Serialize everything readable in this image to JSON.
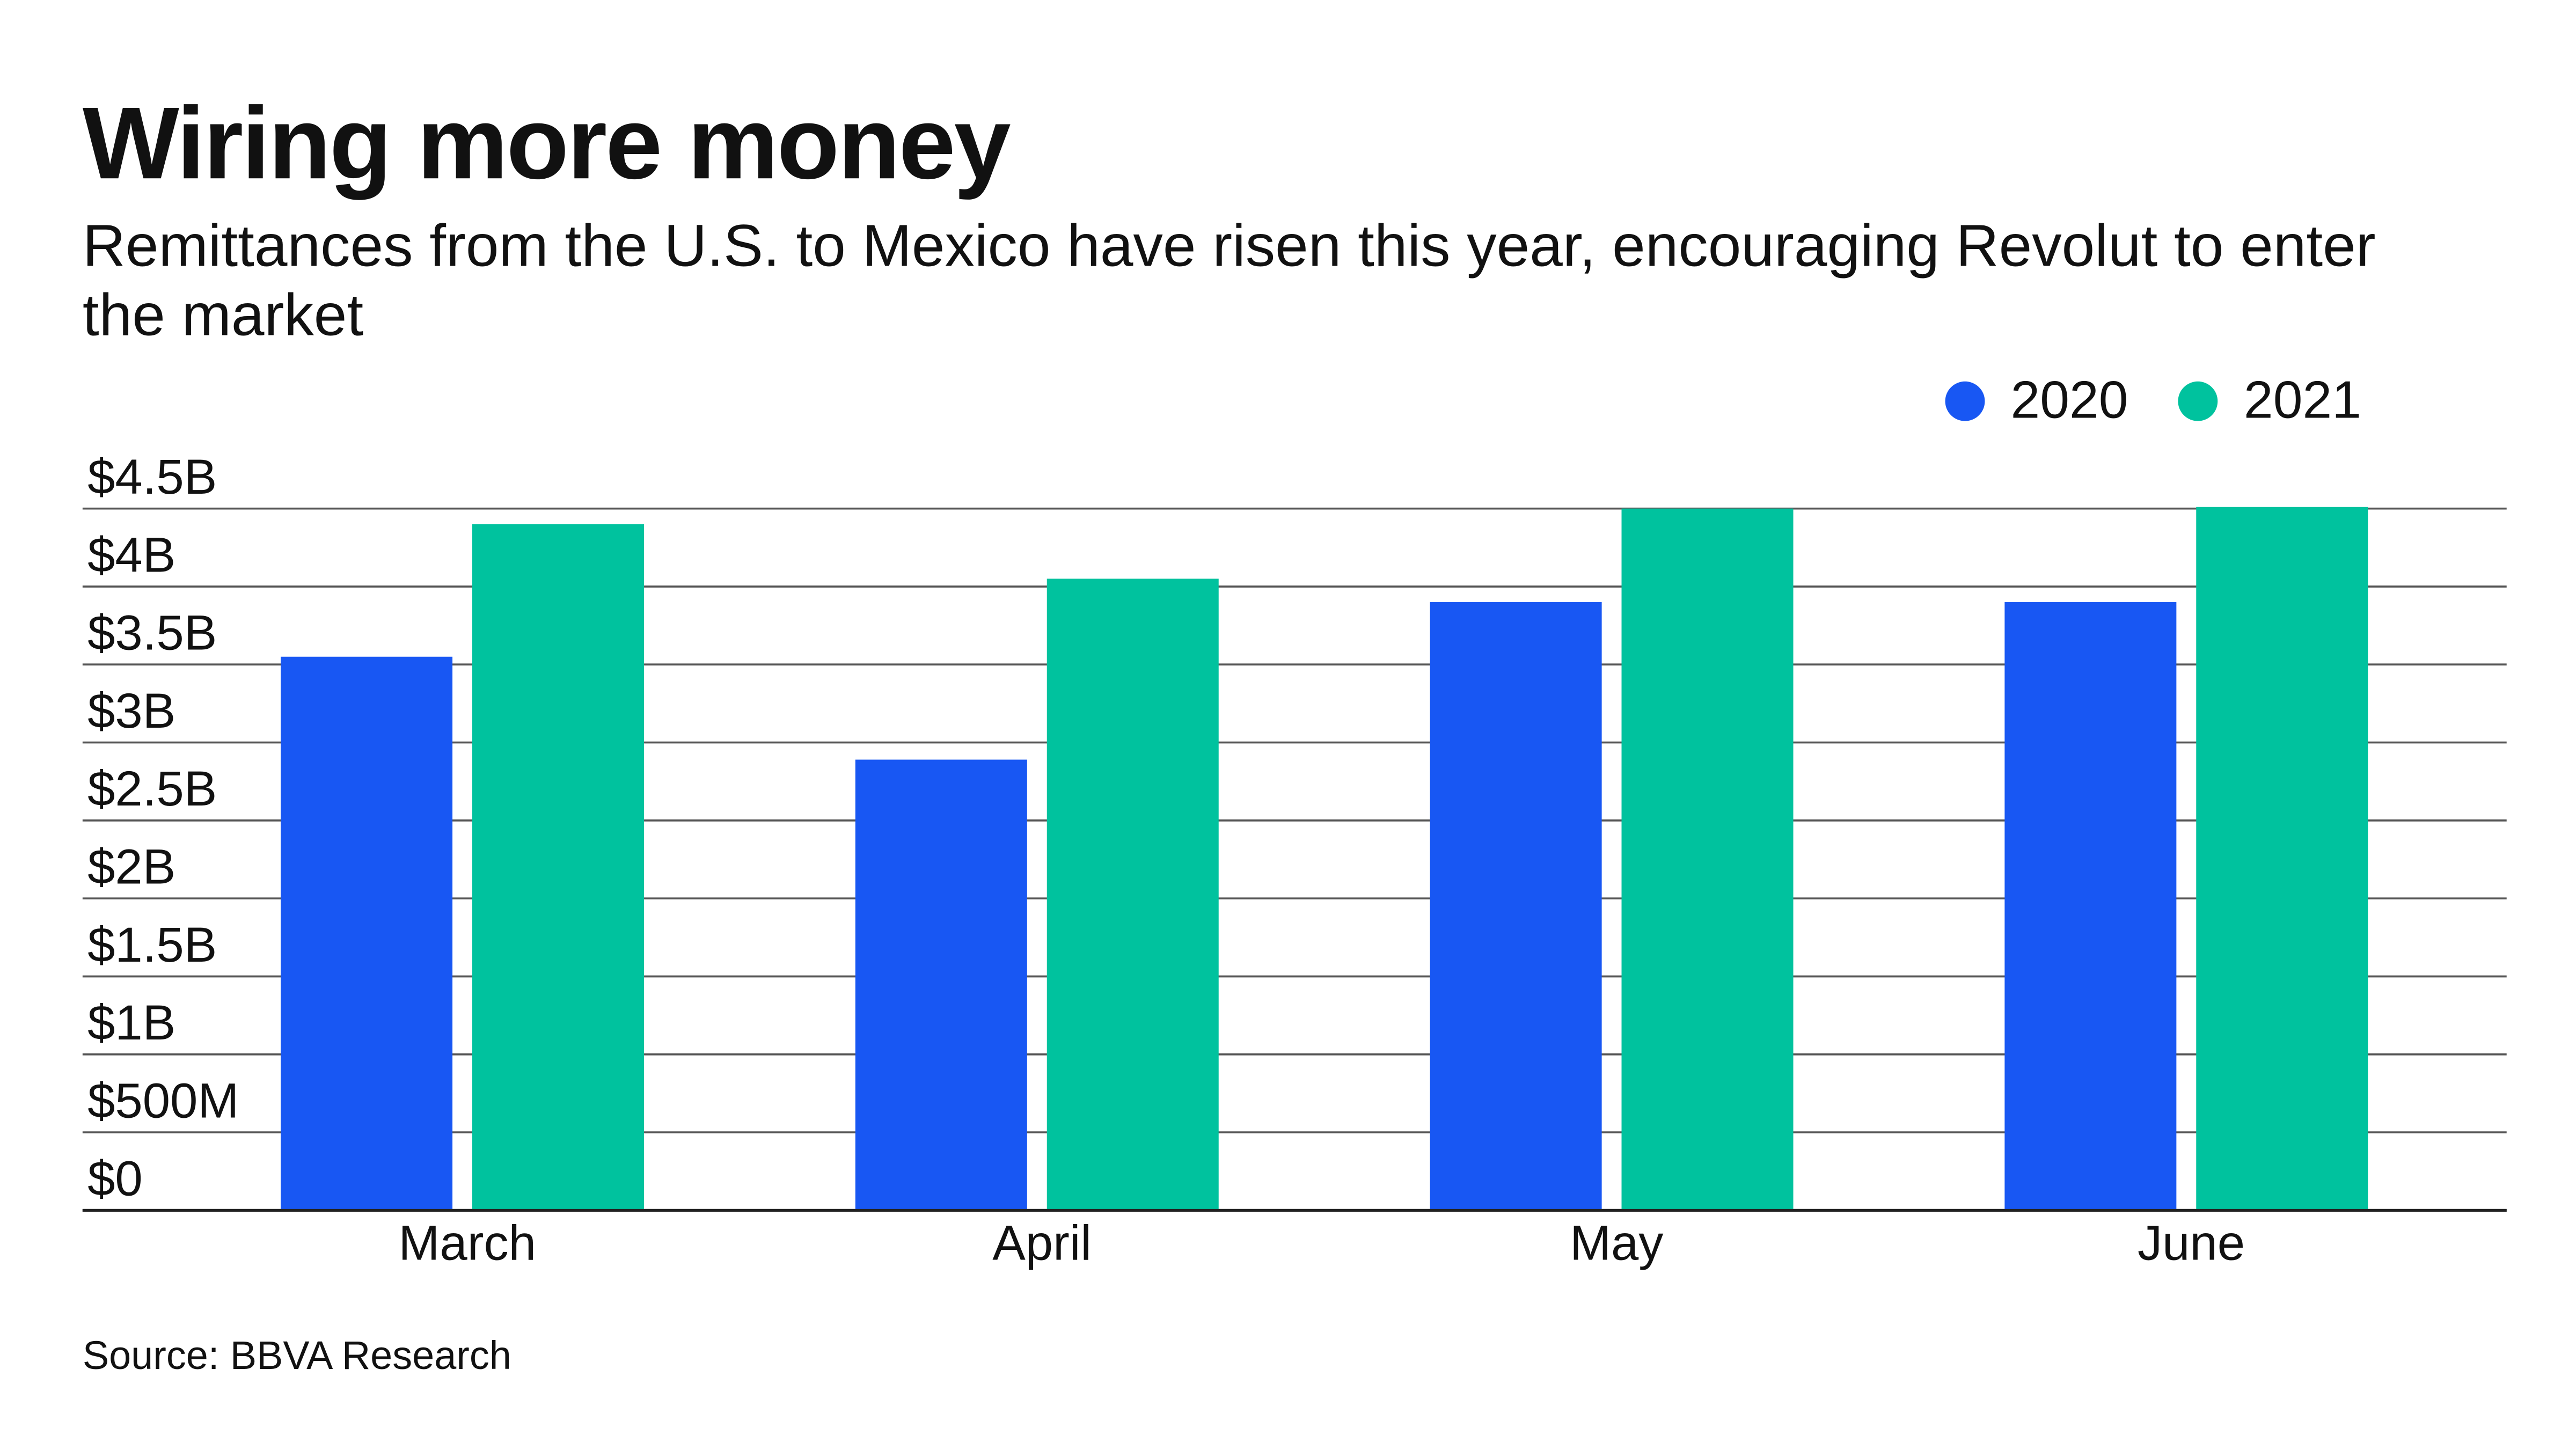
{
  "title": "Wiring more money",
  "subtitle": "Remittances from the U.S. to Mexico have risen this year, encouraging Revolut to enter the market",
  "source": "Source: BBVA Research",
  "chart_data": {
    "type": "bar",
    "title": "Wiring more money",
    "xlabel": "",
    "ylabel": "",
    "categories": [
      "March",
      "April",
      "May",
      "June"
    ],
    "series": [
      {
        "name": "2020",
        "color": "#1857F3",
        "values": [
          3.55,
          2.89,
          3.9,
          3.9
        ]
      },
      {
        "name": "2021",
        "color": "#00C29E",
        "values": [
          4.4,
          4.05,
          4.5,
          4.51
        ]
      }
    ],
    "unit": "billion USD",
    "ylim": [
      0,
      4.5
    ],
    "yticks": [
      0,
      0.5,
      1,
      1.5,
      2,
      2.5,
      3,
      3.5,
      4,
      4.5
    ],
    "ytick_labels": [
      "$0",
      "$500M",
      "$1B",
      "$1.5B",
      "$2B",
      "$2.5B",
      "$3B",
      "$3.5B",
      "$4B",
      "$4.5B"
    ],
    "grid": true,
    "legend_position": "top-right"
  }
}
